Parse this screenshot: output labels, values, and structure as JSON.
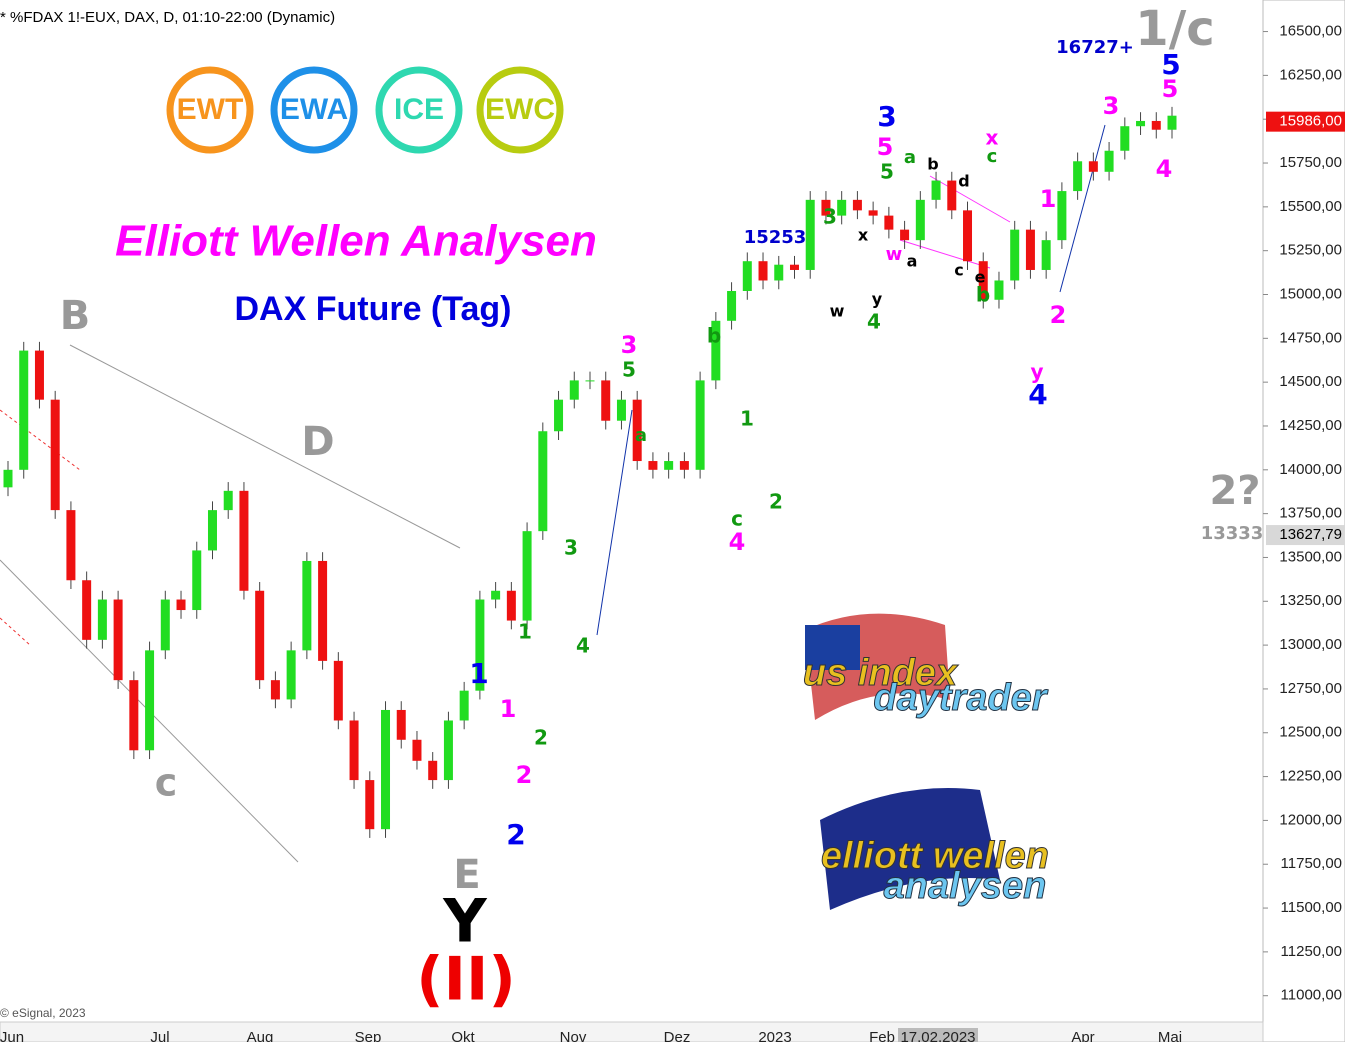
{
  "chart_data": {
    "type": "candlestick",
    "header": "* %FDAX 1!-EUX, DAX, D, 01:10-22:00 (Dynamic)",
    "title": "Elliott Wellen Analysen",
    "subtitle": "DAX Future (Tag)",
    "credit": "© eSignal, 2023",
    "badges": [
      "EWT",
      "EWA",
      "ICE",
      "EWC"
    ],
    "logos": [
      [
        "us index",
        "daytrader"
      ],
      [
        "elliott wellen",
        "analysen"
      ]
    ],
    "up_color": "#22dd22",
    "down_color": "#ee1111",
    "ylim": [
      10850,
      16680
    ],
    "yticks": [
      {
        "value": 16500,
        "label": "16500,00"
      },
      {
        "value": 16250,
        "label": "16250,00"
      },
      {
        "value": 16000,
        "label": "16000,00"
      },
      {
        "value": 15750,
        "label": "15750,00"
      },
      {
        "value": 15500,
        "label": "15500,00"
      },
      {
        "value": 15250,
        "label": "15250,00"
      },
      {
        "value": 15000,
        "label": "15000,00"
      },
      {
        "value": 14750,
        "label": "14750,00"
      },
      {
        "value": 14500,
        "label": "14500,00"
      },
      {
        "value": 14250,
        "label": "14250,00"
      },
      {
        "value": 14000,
        "label": "14000,00"
      },
      {
        "value": 13750,
        "label": "13750,00"
      },
      {
        "value": 13500,
        "label": "13500,00"
      },
      {
        "value": 13250,
        "label": "13250,00"
      },
      {
        "value": 13000,
        "label": "13000,00"
      },
      {
        "value": 12750,
        "label": "12750,00"
      },
      {
        "value": 12500,
        "label": "12500,00"
      },
      {
        "value": 12250,
        "label": "12250,00"
      },
      {
        "value": 12000,
        "label": "12000,00"
      },
      {
        "value": 11750,
        "label": "11750,00"
      },
      {
        "value": 11500,
        "label": "11500,00"
      },
      {
        "value": 11250,
        "label": "11250,00"
      },
      {
        "value": 11000,
        "label": "11000,00"
      }
    ],
    "price_markers": [
      {
        "value": 15986,
        "label": "15986,00",
        "color": "#ee1111"
      },
      {
        "value": 13627.79,
        "label": "13627,79",
        "color": "#d8d8d8"
      }
    ],
    "x_labels": [
      "Jun",
      "Jul",
      "Aug",
      "Sep",
      "Okt",
      "Nov",
      "Dez",
      "2023",
      "Feb",
      "17.02.2023",
      "Apr",
      "Mai"
    ],
    "open": [
      13900,
      14000,
      14680,
      14400,
      13770,
      13370,
      13030,
      13260,
      12800,
      12400,
      12970,
      13260,
      13200,
      13540,
      13770,
      13880,
      13310,
      12800,
      12690,
      12970,
      13480,
      12910,
      12570,
      12230,
      11950,
      12630,
      12460,
      12340,
      12230,
      12570,
      12740,
      13260,
      13310,
      13140,
      13650,
      14220,
      14400,
      14510,
      14510,
      14280,
      14400,
      14050,
      14000,
      14050,
      14000,
      14510,
      14850,
      15020,
      15190,
      15080,
      15170,
      15140,
      15540,
      15450,
      15540,
      15480,
      15450,
      15370,
      15310,
      15540,
      15650,
      15480,
      15190,
      14970,
      15080,
      15370,
      15140,
      15310,
      15590,
      15760,
      15700,
      15820,
      15960,
      15990,
      15940
    ],
    "high": [
      14050,
      14730,
      14730,
      14450,
      13820,
      13420,
      13310,
      13310,
      12850,
      13020,
      13310,
      13310,
      13590,
      13820,
      13930,
      13930,
      13360,
      12850,
      13020,
      13530,
      13530,
      12960,
      12620,
      12280,
      12680,
      12680,
      12510,
      12390,
      12620,
      12790,
      13310,
      13360,
      13360,
      13700,
      14270,
      14450,
      14560,
      14560,
      14560,
      14450,
      14450,
      14100,
      14100,
      14100,
      14560,
      14900,
      15070,
      15240,
      15240,
      15220,
      15220,
      15590,
      15590,
      15590,
      15590,
      15530,
      15500,
      15420,
      15590,
      15700,
      15700,
      15530,
      15240,
      15130,
      15420,
      15420,
      15360,
      15640,
      15810,
      15810,
      15870,
      16010,
      16040,
      16040,
      16070
    ],
    "low": [
      13850,
      13950,
      14350,
      13720,
      13320,
      12980,
      12980,
      12750,
      12350,
      12350,
      12920,
      13150,
      13150,
      13490,
      13720,
      13260,
      12750,
      12640,
      12640,
      12920,
      12860,
      12520,
      12180,
      11900,
      11900,
      12410,
      12290,
      12180,
      12180,
      12520,
      12690,
      13210,
      13090,
      13090,
      13600,
      14170,
      14350,
      14460,
      14230,
      14230,
      14000,
      13950,
      13950,
      13950,
      13950,
      14460,
      14800,
      14970,
      15030,
      15030,
      15090,
      15090,
      15400,
      15400,
      15430,
      15400,
      15320,
      15260,
      15260,
      15490,
      15430,
      15140,
      14920,
      14920,
      15030,
      15090,
      15090,
      15260,
      15540,
      15650,
      15650,
      15770,
      15910,
      15890,
      15890
    ],
    "close": [
      14000,
      14680,
      14400,
      13770,
      13370,
      13030,
      13260,
      12800,
      12400,
      12970,
      13260,
      13200,
      13540,
      13770,
      13880,
      13310,
      12800,
      12690,
      12970,
      13480,
      12910,
      12570,
      12230,
      11950,
      12630,
      12460,
      12340,
      12230,
      12570,
      12740,
      13260,
      13310,
      13140,
      13650,
      14220,
      14400,
      14510,
      14510,
      14280,
      14400,
      14050,
      14000,
      14050,
      14000,
      14510,
      14850,
      15020,
      15190,
      15080,
      15170,
      15140,
      15540,
      15450,
      15540,
      15480,
      15450,
      15370,
      15310,
      15540,
      15650,
      15480,
      15190,
      14970,
      15080,
      15370,
      15140,
      15310,
      15590,
      15760,
      15700,
      15820,
      15960,
      15990,
      15940,
      16020
    ],
    "annotations": [
      {
        "text": "B",
        "color": "#999999"
      },
      {
        "text": "c",
        "color": "#999999"
      },
      {
        "text": "D",
        "color": "#999999"
      },
      {
        "text": "E",
        "color": "#999999"
      },
      {
        "text": "Y",
        "color": "#000000"
      },
      {
        "text": "(II)",
        "color": "#ee0000"
      },
      {
        "text": "1",
        "color": "#0000ee"
      },
      {
        "text": "2",
        "color": "#0000ee"
      },
      {
        "text": "1",
        "color": "#ff00ff"
      },
      {
        "text": "2",
        "color": "#ff00ff"
      },
      {
        "text": "1",
        "color": "#119911"
      },
      {
        "text": "2",
        "color": "#119911"
      },
      {
        "text": "3",
        "color": "#119911"
      },
      {
        "text": "4",
        "color": "#119911"
      },
      {
        "text": "3",
        "color": "#ff00ff"
      },
      {
        "text": "5",
        "color": "#119911"
      },
      {
        "text": "a",
        "color": "#119911"
      },
      {
        "text": "b",
        "color": "#119911"
      },
      {
        "text": "1",
        "color": "#119911"
      },
      {
        "text": "c",
        "color": "#119911"
      },
      {
        "text": "4",
        "color": "#ff00ff"
      },
      {
        "text": "2",
        "color": "#119911"
      },
      {
        "text": "3",
        "color": "#119911"
      },
      {
        "text": "15253",
        "color": "#0000cc"
      },
      {
        "text": "x",
        "color": "#000000"
      },
      {
        "text": "w",
        "color": "#000000"
      },
      {
        "text": "y",
        "color": "#000000"
      },
      {
        "text": "4",
        "color": "#119911"
      },
      {
        "text": "3",
        "color": "#0000ee"
      },
      {
        "text": "5",
        "color": "#ff00ff"
      },
      {
        "text": "5",
        "color": "#119911"
      },
      {
        "text": "a",
        "color": "#119911"
      },
      {
        "text": "b",
        "color": "#000000"
      },
      {
        "text": "d",
        "color": "#000000"
      },
      {
        "text": "w",
        "color": "#ff00ff"
      },
      {
        "text": "a",
        "color": "#000000"
      },
      {
        "text": "c",
        "color": "#000000"
      },
      {
        "text": "e",
        "color": "#000000"
      },
      {
        "text": "b",
        "color": "#119911"
      },
      {
        "text": "x",
        "color": "#ff00ff"
      },
      {
        "text": "c",
        "color": "#119911"
      },
      {
        "text": "1",
        "color": "#ff00ff"
      },
      {
        "text": "2",
        "color": "#ff00ff"
      },
      {
        "text": "y",
        "color": "#ff00ff"
      },
      {
        "text": "4",
        "color": "#0000ee"
      },
      {
        "text": "3",
        "color": "#ff00ff"
      },
      {
        "text": "16727+",
        "color": "#0000cc"
      },
      {
        "text": "1/c",
        "color": "#999999"
      },
      {
        "text": "5",
        "color": "#0000ee"
      },
      {
        "text": "5",
        "color": "#ff00ff"
      },
      {
        "text": "4",
        "color": "#ff00ff"
      },
      {
        "text": "2?",
        "color": "#999999"
      },
      {
        "text": "13333",
        "color": "#999999"
      }
    ]
  }
}
